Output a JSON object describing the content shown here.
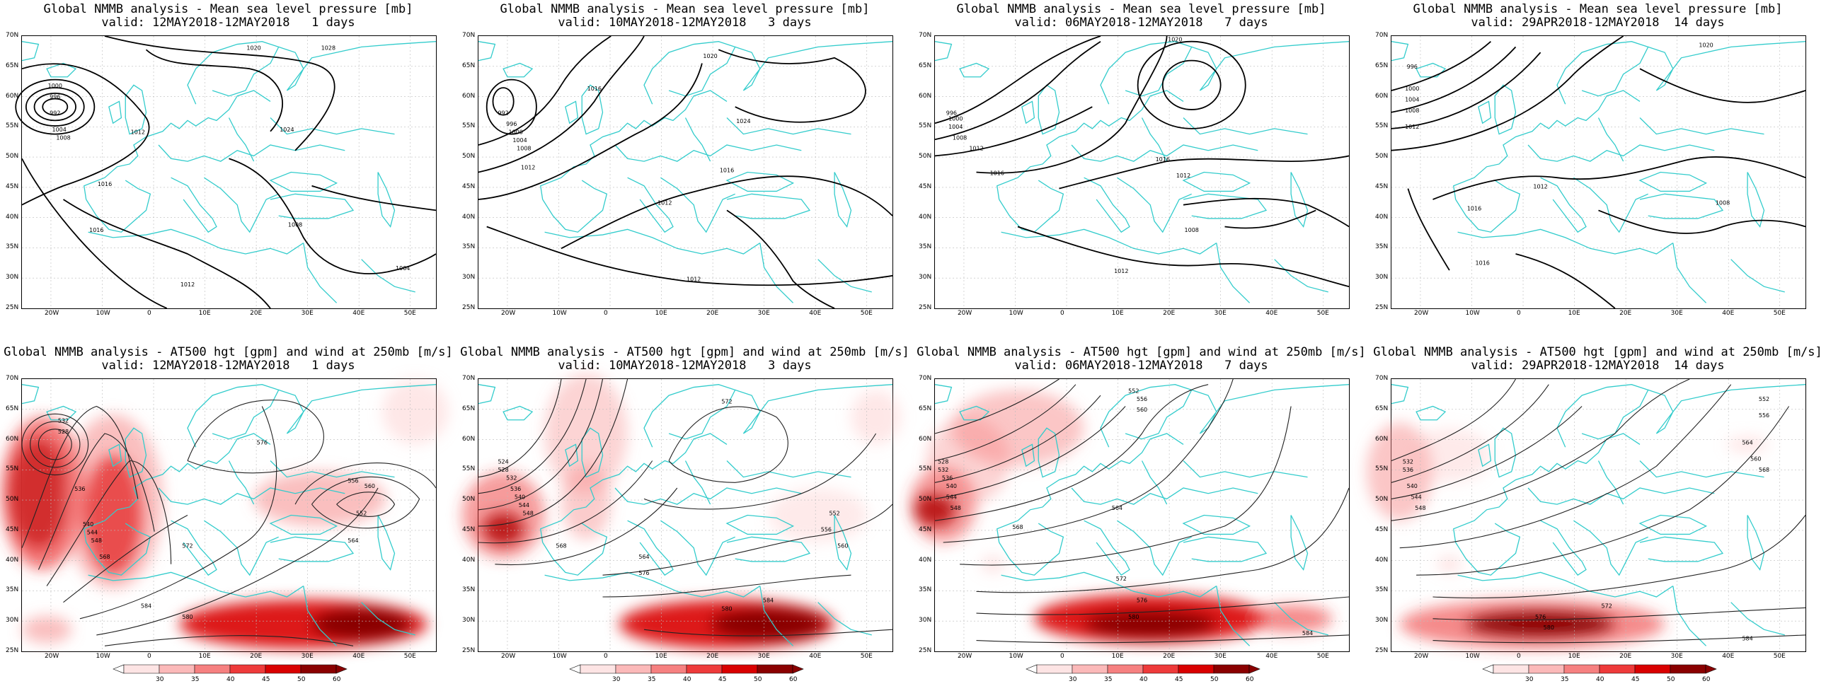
{
  "rows": [
    {
      "kind": "mslp",
      "panels": [
        {
          "title_line1": "Global NMMB analysis - Mean sea level pressure [mb]",
          "title_line2": "valid: 12MAY2018-12MAY2018   1 days"
        },
        {
          "title_line1": "Global NMMB analysis - Mean sea level pressure [mb]",
          "title_line2": "valid: 10MAY2018-12MAY2018   3 days"
        },
        {
          "title_line1": "Global NMMB analysis - Mean sea level pressure [mb]",
          "title_line2": "valid: 06MAY2018-12MAY2018   7 days"
        },
        {
          "title_line1": "Global NMMB analysis - Mean sea level pressure [mb]",
          "title_line2": "valid: 29APR2018-12MAY2018  14 days"
        }
      ]
    },
    {
      "kind": "at500",
      "panels": [
        {
          "title_line1": "Global NMMB analysis - AT500 hgt [gpm] and wind at 250mb [m/s]",
          "title_line2": "valid: 12MAY2018-12MAY2018   1 days"
        },
        {
          "title_line1": "Global NMMB analysis - AT500 hgt [gpm] and wind at 250mb [m/s]",
          "title_line2": "valid: 10MAY2018-12MAY2018   3 days"
        },
        {
          "title_line1": "Global NMMB analysis - AT500 hgt [gpm] and wind at 250mb [m/s]",
          "title_line2": "valid: 06MAY2018-12MAY2018   7 days"
        },
        {
          "title_line1": "Global NMMB analysis - AT500 hgt [gpm] and wind at 250mb [m/s]",
          "title_line2": "valid: 29APR2018-12MAY2018  14 days"
        }
      ]
    }
  ],
  "lat_labels": [
    "70N",
    "65N",
    "60N",
    "55N",
    "50N",
    "45N",
    "40N",
    "35N",
    "30N",
    "25N"
  ],
  "lon_labels": [
    "20W",
    "10W",
    "0",
    "10E",
    "20E",
    "30E",
    "40E",
    "50E"
  ],
  "colorbar_labels": [
    "30",
    "35",
    "40",
    "45",
    "50",
    "60"
  ],
  "colors": {
    "coast": "#33cccc",
    "contour": "#000000",
    "wind_scale": [
      "#fde4e4",
      "#fbb9b9",
      "#f68080",
      "#ee3a3a",
      "#d90000",
      "#8a0000"
    ],
    "grid": "#bbbbbb"
  },
  "mslp_contour_labels": {
    "p0": [
      "1000",
      "996",
      "992",
      "1004",
      "1008",
      "1012",
      "1016",
      "1020",
      "1024",
      "1028",
      "1016",
      "1012",
      "1008",
      "1004"
    ],
    "p1": [
      "992",
      "996",
      "1000",
      "1004",
      "1008",
      "1012",
      "1016",
      "1020",
      "1024",
      "1012",
      "1016",
      "1012"
    ],
    "p2": [
      "996",
      "1000",
      "1004",
      "1008",
      "1012",
      "1016",
      "1020",
      "1016",
      "1012",
      "1008",
      "1012"
    ],
    "p3": [
      "996",
      "1000",
      "1004",
      "1008",
      "1012",
      "1016",
      "1020",
      "1012",
      "1008",
      "1016"
    ]
  },
  "at500_contour_labels": {
    "p0": [
      "532",
      "528",
      "536",
      "540",
      "544",
      "548",
      "552",
      "556",
      "560",
      "564",
      "568",
      "572",
      "576",
      "580",
      "584"
    ],
    "p1": [
      "524",
      "528",
      "532",
      "536",
      "540",
      "544",
      "548",
      "552",
      "556",
      "560",
      "564",
      "568",
      "572",
      "576",
      "580",
      "584"
    ],
    "p2": [
      "528",
      "532",
      "536",
      "540",
      "544",
      "548",
      "552",
      "556",
      "560",
      "564",
      "568",
      "572",
      "576",
      "580",
      "584"
    ],
    "p3": [
      "532",
      "536",
      "540",
      "544",
      "548",
      "552",
      "556",
      "560",
      "564",
      "568",
      "572",
      "576",
      "580",
      "584"
    ]
  }
}
